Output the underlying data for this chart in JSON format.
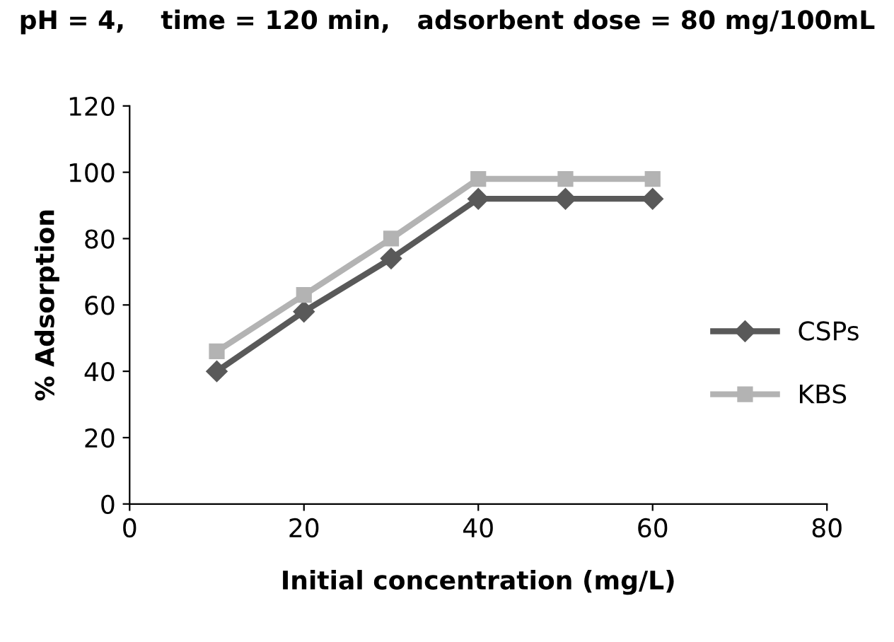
{
  "chart_data": {
    "type": "line",
    "title": "pH = 4,    time = 120 min,   adsorbent dose = 80 mg/100mL",
    "xlabel": "Initial concentration (mg/L)",
    "ylabel": "% Adsorption",
    "x": [
      10,
      20,
      30,
      40,
      50,
      60
    ],
    "series": [
      {
        "name": "CSPs",
        "color": "#595959",
        "marker": "diamond",
        "values": [
          40,
          58,
          74,
          92,
          92,
          92
        ]
      },
      {
        "name": "KBS",
        "color": "#b3b3b3",
        "marker": "square",
        "values": [
          46,
          63,
          80,
          98,
          98,
          98
        ]
      }
    ],
    "xlim": [
      0,
      80
    ],
    "xticks": [
      0,
      20,
      40,
      60,
      80
    ],
    "ylim": [
      0,
      120
    ],
    "yticks": [
      0,
      20,
      40,
      60,
      80,
      100,
      120
    ],
    "grid": false,
    "legend": "right",
    "line_style": "solid"
  }
}
